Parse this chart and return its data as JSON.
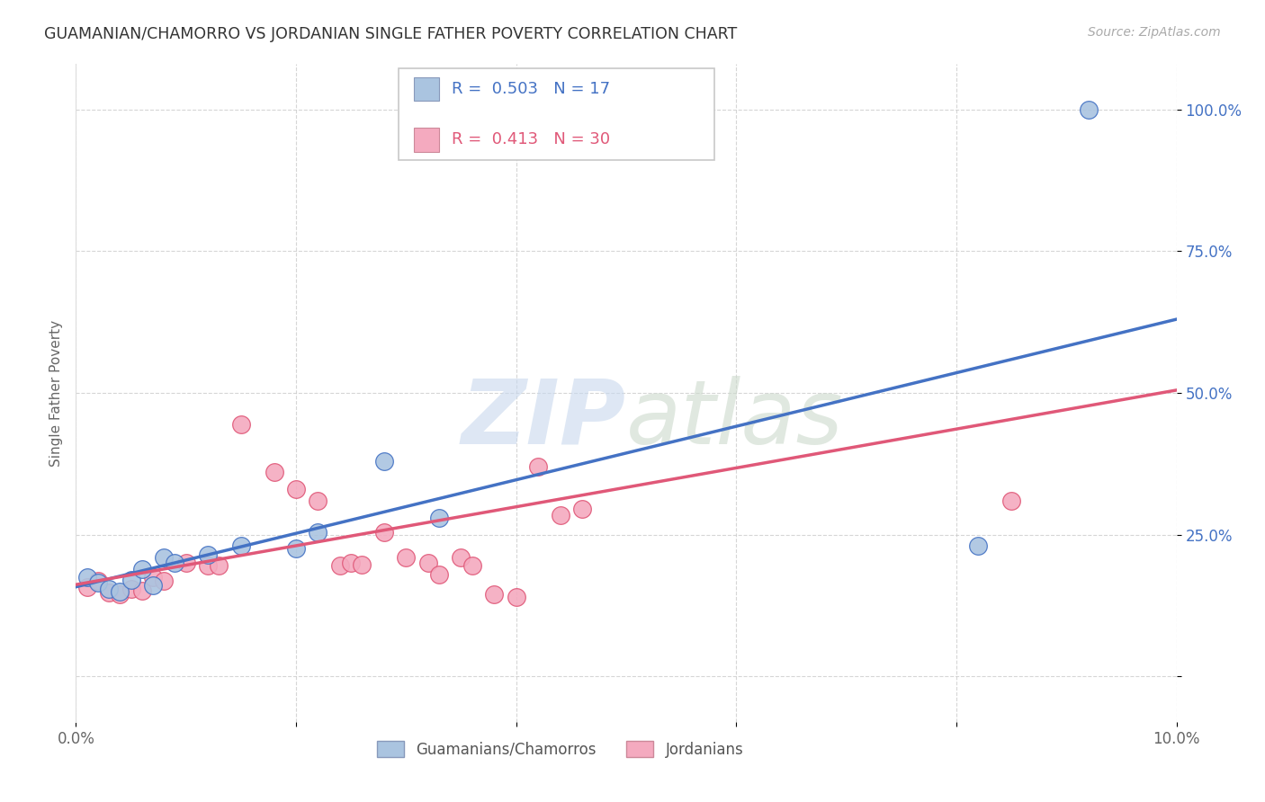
{
  "title": "GUAMANIAN/CHAMORRO VS JORDANIAN SINGLE FATHER POVERTY CORRELATION CHART",
  "source": "Source: ZipAtlas.com",
  "ylabel": "Single Father Poverty",
  "ytick_vals": [
    0.0,
    0.25,
    0.5,
    0.75,
    1.0
  ],
  "ytick_labels": [
    "",
    "25.0%",
    "50.0%",
    "75.0%",
    "100.0%"
  ],
  "xmin": 0.0,
  "xmax": 0.1,
  "ymin": -0.08,
  "ymax": 1.08,
  "legend_r_blue": "0.503",
  "legend_n_blue": "17",
  "legend_r_pink": "0.413",
  "legend_n_pink": "30",
  "legend_label_blue": "Guamanians/Chamorros",
  "legend_label_pink": "Jordanians",
  "blue_color": "#aac4e0",
  "pink_color": "#f4aabf",
  "blue_line_color": "#4472c4",
  "pink_line_color": "#e05878",
  "blue_scatter_x": [
    0.001,
    0.002,
    0.003,
    0.004,
    0.005,
    0.006,
    0.007,
    0.008,
    0.009,
    0.012,
    0.015,
    0.02,
    0.022,
    0.028,
    0.033,
    0.082,
    0.092
  ],
  "blue_scatter_y": [
    0.175,
    0.165,
    0.155,
    0.15,
    0.17,
    0.19,
    0.16,
    0.21,
    0.2,
    0.215,
    0.23,
    0.225,
    0.255,
    0.38,
    0.28,
    0.23,
    1.0
  ],
  "pink_scatter_x": [
    0.001,
    0.002,
    0.003,
    0.004,
    0.005,
    0.006,
    0.007,
    0.008,
    0.01,
    0.012,
    0.013,
    0.015,
    0.018,
    0.02,
    0.022,
    0.024,
    0.025,
    0.026,
    0.028,
    0.03,
    0.032,
    0.033,
    0.035,
    0.036,
    0.038,
    0.04,
    0.042,
    0.044,
    0.046,
    0.085
  ],
  "pink_scatter_y": [
    0.158,
    0.168,
    0.148,
    0.145,
    0.155,
    0.152,
    0.175,
    0.168,
    0.2,
    0.195,
    0.195,
    0.445,
    0.36,
    0.33,
    0.31,
    0.195,
    0.2,
    0.197,
    0.255,
    0.21,
    0.2,
    0.18,
    0.21,
    0.195,
    0.145,
    0.14,
    0.37,
    0.285,
    0.295,
    0.31
  ],
  "blue_line_x": [
    0.0,
    0.1
  ],
  "blue_line_y": [
    0.158,
    0.63
  ],
  "pink_line_x": [
    0.0,
    0.1
  ],
  "pink_line_y": [
    0.162,
    0.505
  ]
}
